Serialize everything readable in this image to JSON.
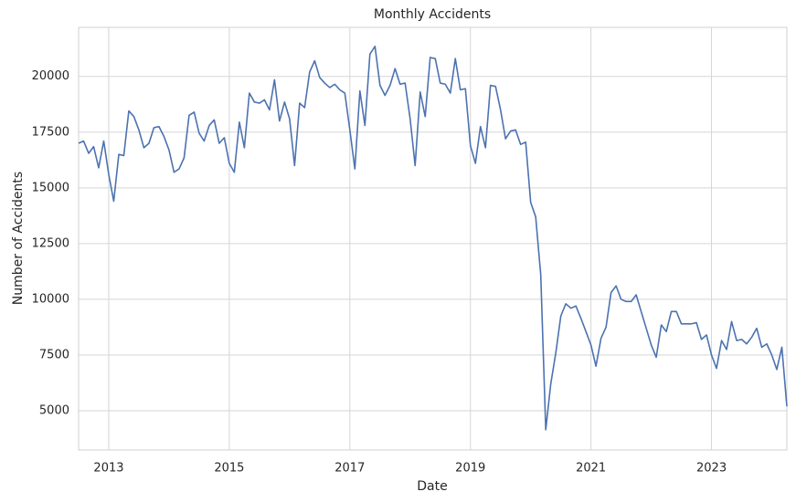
{
  "chart_data": {
    "type": "line",
    "title": "Monthly Accidents",
    "x_label": "Date",
    "y_label": "Number of Accidents",
    "x": [
      2012.5,
      2012.583,
      2012.667,
      2012.75,
      2012.833,
      2012.917,
      2013,
      2013.083,
      2013.167,
      2013.25,
      2013.333,
      2013.417,
      2013.5,
      2013.583,
      2013.667,
      2013.75,
      2013.833,
      2013.917,
      2014,
      2014.083,
      2014.167,
      2014.25,
      2014.333,
      2014.417,
      2014.5,
      2014.583,
      2014.667,
      2014.75,
      2014.833,
      2014.917,
      2015,
      2015.083,
      2015.167,
      2015.25,
      2015.333,
      2015.417,
      2015.5,
      2015.583,
      2015.667,
      2015.75,
      2015.833,
      2015.917,
      2016,
      2016.083,
      2016.167,
      2016.25,
      2016.333,
      2016.417,
      2016.5,
      2016.583,
      2016.667,
      2016.75,
      2016.833,
      2016.917,
      2017,
      2017.083,
      2017.167,
      2017.25,
      2017.333,
      2017.417,
      2017.5,
      2017.583,
      2017.667,
      2017.75,
      2017.833,
      2017.917,
      2018,
      2018.083,
      2018.167,
      2018.25,
      2018.333,
      2018.417,
      2018.5,
      2018.583,
      2018.667,
      2018.75,
      2018.833,
      2018.917,
      2019,
      2019.083,
      2019.167,
      2019.25,
      2019.333,
      2019.417,
      2019.5,
      2019.583,
      2019.667,
      2019.75,
      2019.833,
      2019.917,
      2020,
      2020.083,
      2020.167,
      2020.25,
      2020.333,
      2020.417,
      2020.5,
      2020.583,
      2020.667,
      2020.75,
      2020.833,
      2020.917,
      2021,
      2021.083,
      2021.167,
      2021.25,
      2021.333,
      2021.417,
      2021.5,
      2021.583,
      2021.667,
      2021.75,
      2021.833,
      2021.917,
      2022,
      2022.083,
      2022.167,
      2022.25,
      2022.333,
      2022.417,
      2022.5,
      2022.583,
      2022.667,
      2022.75,
      2022.833,
      2022.917,
      2023,
      2023.083,
      2023.167,
      2023.25,
      2023.333,
      2023.417,
      2023.5,
      2023.583,
      2023.667,
      2023.75,
      2023.833,
      2023.917,
      2024,
      2024.083,
      2024.167,
      2024.25
    ],
    "series": [
      {
        "name": "Accidents",
        "color": "#4c72b0",
        "values": [
          17000,
          17100,
          16550,
          16850,
          15900,
          17100,
          15600,
          14400,
          16500,
          16450,
          18450,
          18200,
          17600,
          16800,
          17000,
          17700,
          17750,
          17300,
          16700,
          15700,
          15850,
          16350,
          18250,
          18400,
          17450,
          17100,
          17800,
          18050,
          17000,
          17250,
          16100,
          15700,
          17950,
          16800,
          19250,
          18850,
          18800,
          18950,
          18500,
          19850,
          18000,
          18850,
          18100,
          16000,
          18800,
          18600,
          20200,
          20700,
          19950,
          19700,
          19500,
          19650,
          19400,
          19250,
          17600,
          15850,
          19350,
          17800,
          21000,
          21350,
          19600,
          19150,
          19600,
          20350,
          19650,
          19700,
          18100,
          16000,
          19300,
          18200,
          20850,
          20800,
          19700,
          19650,
          19250,
          20800,
          19400,
          19450,
          16900,
          16100,
          17750,
          16800,
          19600,
          19550,
          18500,
          17200,
          17550,
          17600,
          16950,
          17050,
          14350,
          13700,
          11100,
          4150,
          6200,
          7600,
          9250,
          9800,
          9600,
          9700,
          9150,
          8550,
          7950,
          7000,
          8250,
          8750,
          10300,
          10600,
          10000,
          9900,
          9900,
          10200,
          9450,
          8700,
          7950,
          7400,
          8850,
          8550,
          9450,
          9450,
          8900,
          8900,
          8900,
          8950,
          8200,
          8400,
          7500,
          6900,
          8150,
          7750,
          9000,
          8150,
          8200,
          8000,
          8300,
          8700,
          7850,
          8000,
          7500,
          6850,
          7850,
          5200
        ]
      }
    ],
    "xlim": [
      2012.5,
      2024.25
    ],
    "xticks": [
      2013,
      2015,
      2017,
      2019,
      2021,
      2023
    ],
    "ylim": [
      3240,
      22200
    ],
    "yticks": [
      5000,
      7500,
      10000,
      12500,
      15000,
      17500,
      20000
    ],
    "grid": true
  }
}
